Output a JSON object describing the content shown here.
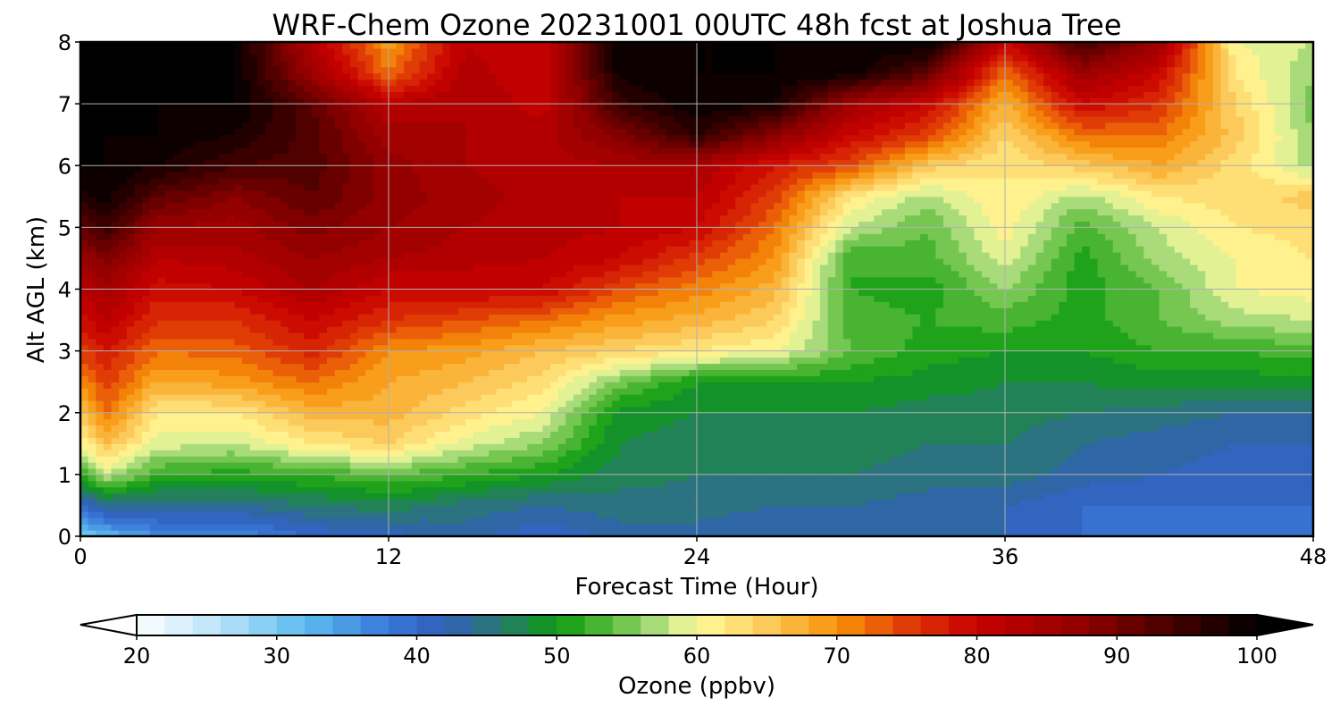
{
  "chart_data": {
    "type": "heatmap",
    "title": "WRF-Chem Ozone  20231001 00UTC 48h fcst at Joshua Tree",
    "xlabel": "Forecast Time (Hour)",
    "ylabel": "Alt AGL (km)",
    "xlim": [
      0,
      48
    ],
    "ylim": [
      0,
      8
    ],
    "x_ticks": [
      0,
      12,
      24,
      36,
      48
    ],
    "y_ticks": [
      0,
      1,
      2,
      3,
      4,
      5,
      6,
      7,
      8
    ],
    "grid": true,
    "colorbar": {
      "label": "Ozone  (ppbv)",
      "min": 20,
      "max": 100,
      "step": 2,
      "ticks": [
        20,
        30,
        40,
        50,
        60,
        70,
        80,
        90,
        100
      ],
      "extend": "both",
      "placement": "bottom",
      "color_stops": [
        {
          "v": 20,
          "c": "#ffffff"
        },
        {
          "v": 26,
          "c": "#b8e2f8"
        },
        {
          "v": 32,
          "c": "#5bbcf0"
        },
        {
          "v": 38,
          "c": "#3b78d8"
        },
        {
          "v": 42,
          "c": "#2f5fb8"
        },
        {
          "v": 46,
          "c": "#2a7a6e"
        },
        {
          "v": 50,
          "c": "#0a9a10"
        },
        {
          "v": 54,
          "c": "#5cbd3c"
        },
        {
          "v": 58,
          "c": "#c2e58e"
        },
        {
          "v": 60,
          "c": "#fffc9a"
        },
        {
          "v": 64,
          "c": "#fdd56a"
        },
        {
          "v": 70,
          "c": "#f8930a"
        },
        {
          "v": 75,
          "c": "#e03c06"
        },
        {
          "v": 80,
          "c": "#c80000"
        },
        {
          "v": 88,
          "c": "#8c0000"
        },
        {
          "v": 95,
          "c": "#3a0000"
        },
        {
          "v": 100,
          "c": "#000000"
        }
      ]
    },
    "x": [
      0,
      1,
      3,
      6,
      9,
      12,
      15,
      18,
      21,
      24,
      27,
      30,
      33,
      36,
      39,
      42,
      45,
      48
    ],
    "y": [
      0,
      0.5,
      1,
      1.5,
      2,
      2.5,
      3,
      3.5,
      4,
      4.5,
      5,
      5.5,
      6,
      6.5,
      7,
      7.5,
      8
    ],
    "z": [
      [
        30,
        32,
        36,
        36,
        40,
        41,
        43,
        40,
        43,
        43,
        42,
        42,
        42,
        42,
        40,
        39,
        39,
        40
      ],
      [
        40,
        44,
        44,
        44,
        46,
        47,
        45,
        44,
        45,
        45,
        44,
        44,
        43,
        42,
        40,
        40,
        40,
        40
      ],
      [
        52,
        58,
        52,
        51,
        52,
        54,
        52,
        50,
        47,
        46,
        46,
        46,
        45,
        45,
        43,
        42,
        41,
        41
      ],
      [
        60,
        66,
        59,
        58,
        62,
        64,
        59,
        56,
        48,
        47,
        47,
        47,
        46,
        46,
        44,
        43,
        42,
        42
      ],
      [
        65,
        72,
        62,
        62,
        67,
        67,
        63,
        60,
        49,
        48,
        48,
        48,
        47,
        47,
        46,
        45,
        44,
        44
      ],
      [
        70,
        75,
        68,
        69,
        72,
        68,
        66,
        63,
        55,
        50,
        50,
        50,
        49,
        48,
        48,
        49,
        49,
        49
      ],
      [
        75,
        78,
        72,
        73,
        77,
        70,
        69,
        66,
        64,
        62,
        60,
        54,
        51,
        50,
        50,
        52,
        52,
        53
      ],
      [
        79,
        82,
        76,
        76,
        80,
        76,
        74,
        72,
        69,
        67,
        64,
        53,
        52,
        53,
        51,
        54,
        57,
        58
      ],
      [
        82,
        85,
        79,
        80,
        84,
        80,
        80,
        80,
        74,
        71,
        67,
        52,
        51,
        56,
        51,
        54,
        60,
        61
      ],
      [
        86,
        89,
        82,
        83,
        86,
        84,
        83,
        82,
        80,
        75,
        70,
        52,
        53,
        59,
        51,
        57,
        60,
        62
      ],
      [
        92,
        95,
        86,
        85,
        89,
        86,
        84,
        83,
        82,
        80,
        72,
        58,
        54,
        61,
        53,
        58,
        62,
        63
      ],
      [
        97,
        99,
        92,
        88,
        92,
        87,
        85,
        83,
        82,
        82,
        75,
        62,
        57,
        62,
        57,
        62,
        63,
        65
      ],
      [
        100,
        100,
        98,
        94,
        93,
        87,
        84,
        83,
        84,
        84,
        78,
        74,
        65,
        62,
        65,
        68,
        63,
        57
      ],
      [
        100,
        100,
        100,
        98,
        93,
        85,
        84,
        83,
        89,
        96,
        88,
        80,
        75,
        64,
        72,
        72,
        65,
        56
      ],
      [
        100,
        100,
        100,
        100,
        92,
        82,
        84,
        81,
        95,
        100,
        98,
        85,
        80,
        67,
        80,
        76,
        64,
        55
      ],
      [
        100,
        100,
        100,
        100,
        86,
        72,
        83,
        80,
        99,
        100,
        100,
        99,
        92,
        72,
        86,
        80,
        62,
        56
      ],
      [
        100,
        100,
        100,
        100,
        83,
        69,
        82,
        80,
        100,
        100,
        100,
        100,
        100,
        80,
        95,
        86,
        60,
        58
      ]
    ]
  }
}
